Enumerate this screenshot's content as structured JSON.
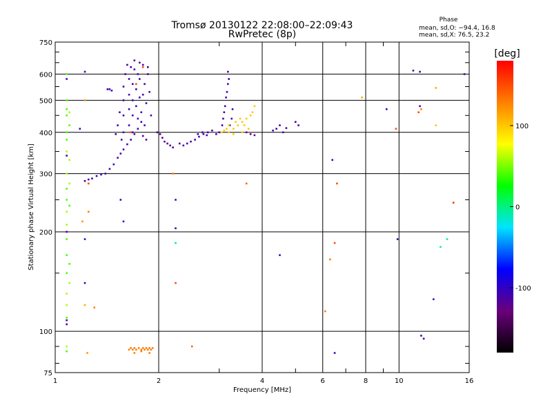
{
  "chart_data": {
    "type": "scatter",
    "title": "Tromsø 20130122 22:08:00–22:09:43",
    "subtitle": "RwPretec (8p)",
    "xlabel": "Frequency [MHz]",
    "ylabel": "Stationary phase Virtual Height [km]",
    "xscale": "log",
    "yscale": "log",
    "xlim": [
      1,
      16
    ],
    "ylim": [
      75,
      750
    ],
    "x_ticks": [
      1,
      2,
      4,
      6,
      8,
      10,
      16
    ],
    "y_ticks": [
      75,
      100,
      200,
      300,
      400,
      500,
      600,
      750
    ],
    "grid": true,
    "stats": {
      "heading": "Phase",
      "o_line": "mean, sd,O: −94.4, 16.8",
      "x_line": "mean, sd,X:  76.5, 23.2"
    },
    "colorbar": {
      "label": "[deg]",
      "range": [
        -180,
        180
      ],
      "ticks": [
        100,
        0,
        -100
      ],
      "colors": [
        "#000000",
        "#6a007a",
        "#0000ff",
        "#00e4ff",
        "#00ff00",
        "#ffff00",
        "#ff8000",
        "#ff0000"
      ]
    },
    "series": [
      {
        "points": [
          [
            1.22,
            285,
            -110
          ],
          [
            1.25,
            288,
            -110
          ],
          [
            1.28,
            290,
            -110
          ],
          [
            1.32,
            295,
            -110
          ],
          [
            1.36,
            298,
            -110
          ],
          [
            1.4,
            300,
            -110
          ],
          [
            1.44,
            310,
            -110
          ],
          [
            1.48,
            320,
            -110
          ],
          [
            1.52,
            335,
            -110
          ],
          [
            1.55,
            345,
            -110
          ],
          [
            1.58,
            355,
            -110
          ],
          [
            1.62,
            368,
            -110
          ],
          [
            1.66,
            380,
            -110
          ],
          [
            1.7,
            395,
            -110
          ],
          [
            1.74,
            410,
            -110
          ],
          [
            1.78,
            430,
            -110
          ],
          [
            1.58,
            400,
            -110
          ],
          [
            1.58,
            450,
            -110
          ],
          [
            1.58,
            500,
            -110
          ],
          [
            1.58,
            550,
            -110
          ],
          [
            1.6,
            600,
            -110
          ],
          [
            1.62,
            640,
            -110
          ],
          [
            1.64,
            420,
            -110
          ],
          [
            1.64,
            470,
            -110
          ],
          [
            1.64,
            520,
            -110
          ],
          [
            1.64,
            580,
            -110
          ],
          [
            1.66,
            630,
            -110
          ],
          [
            1.68,
            400,
            -110
          ],
          [
            1.68,
            450,
            -110
          ],
          [
            1.68,
            500,
            -110
          ],
          [
            1.68,
            560,
            -110
          ],
          [
            1.7,
            620,
            -110
          ],
          [
            1.72,
            480,
            -110
          ],
          [
            1.72,
            540,
            -110
          ],
          [
            1.74,
            440,
            -110
          ],
          [
            1.74,
            600,
            -110
          ],
          [
            1.76,
            510,
            -110
          ],
          [
            1.76,
            580,
            -110
          ],
          [
            1.78,
            460,
            -110
          ],
          [
            1.8,
            390,
            -110
          ],
          [
            1.8,
            520,
            -110
          ],
          [
            1.8,
            640,
            -110
          ],
          [
            1.82,
            420,
            -110
          ],
          [
            1.82,
            560,
            -110
          ],
          [
            1.84,
            380,
            -110
          ],
          [
            1.84,
            490,
            -110
          ],
          [
            1.86,
            600,
            -110
          ],
          [
            1.88,
            530,
            -110
          ],
          [
            1.9,
            450,
            -110
          ],
          [
            1.5,
            395,
            -110
          ],
          [
            1.52,
            420,
            -110
          ],
          [
            1.54,
            460,
            -110
          ],
          [
            1.56,
            380,
            -110
          ],
          [
            1.42,
            540,
            -110
          ],
          [
            1.44,
            540,
            -110
          ],
          [
            1.46,
            535,
            -110
          ],
          [
            1.7,
            660,
            -110
          ],
          [
            1.76,
            650,
            -110
          ],
          [
            1.86,
            630,
            -110
          ],
          [
            1.98,
            400,
            -120
          ],
          [
            2.02,
            395,
            -120
          ],
          [
            2.05,
            385,
            -120
          ],
          [
            2.08,
            375,
            -120
          ],
          [
            2.12,
            370,
            -120
          ],
          [
            2.16,
            365,
            -120
          ],
          [
            2.2,
            360,
            -120
          ],
          [
            2.3,
            370,
            -110
          ],
          [
            2.36,
            365,
            -110
          ],
          [
            2.42,
            370,
            -110
          ],
          [
            2.48,
            375,
            -110
          ],
          [
            2.55,
            380,
            -110
          ],
          [
            2.62,
            388,
            -110
          ],
          [
            2.7,
            395,
            -110
          ],
          [
            2.78,
            400,
            -110
          ],
          [
            2.86,
            405,
            -110
          ],
          [
            2.94,
            395,
            -110
          ],
          [
            3.0,
            400,
            -110
          ],
          [
            2.6,
            395,
            -110
          ],
          [
            2.68,
            400,
            -110
          ],
          [
            2.76,
            392,
            -110
          ],
          [
            3.06,
            420,
            -110
          ],
          [
            3.08,
            440,
            -110
          ],
          [
            3.1,
            460,
            -110
          ],
          [
            3.12,
            480,
            -110
          ],
          [
            3.14,
            510,
            -110
          ],
          [
            3.16,
            530,
            -110
          ],
          [
            3.18,
            560,
            -110
          ],
          [
            3.2,
            580,
            -110
          ],
          [
            3.22,
            420,
            -110
          ],
          [
            3.26,
            440,
            -110
          ],
          [
            3.28,
            470,
            -110
          ],
          [
            3.6,
            400,
            -120
          ],
          [
            3.7,
            395,
            -120
          ],
          [
            3.8,
            392,
            -120
          ],
          [
            4.3,
            405,
            -110
          ],
          [
            4.4,
            410,
            -110
          ],
          [
            4.5,
            420,
            -110
          ],
          [
            4.6,
            400,
            -110
          ],
          [
            4.7,
            412,
            -110
          ],
          [
            5.0,
            430,
            -110
          ],
          [
            5.1,
            420,
            -110
          ]
        ]
      },
      {
        "points": [
          [
            3.05,
            400,
            100
          ],
          [
            3.1,
            405,
            100
          ],
          [
            3.15,
            410,
            100
          ],
          [
            3.2,
            400,
            100
          ],
          [
            3.3,
            410,
            100
          ],
          [
            3.4,
            420,
            100
          ],
          [
            3.5,
            430,
            100
          ],
          [
            3.6,
            440,
            100
          ],
          [
            3.7,
            450,
            100
          ],
          [
            3.75,
            460,
            100
          ],
          [
            3.8,
            480,
            100
          ],
          [
            3.2,
            420,
            100
          ],
          [
            3.35,
            430,
            100
          ],
          [
            3.45,
            440,
            100
          ],
          [
            3.55,
            420,
            100
          ],
          [
            3.65,
            410,
            100
          ],
          [
            3.5,
            400,
            100
          ],
          [
            3.3,
            395,
            100
          ],
          [
            1.64,
            88,
            130
          ],
          [
            1.66,
            89,
            130
          ],
          [
            1.68,
            88,
            130
          ],
          [
            1.7,
            89,
            130
          ],
          [
            1.72,
            88,
            130
          ],
          [
            1.75,
            89,
            130
          ],
          [
            1.78,
            88,
            130
          ],
          [
            1.8,
            89,
            130
          ],
          [
            1.82,
            88,
            130
          ],
          [
            1.84,
            89,
            130
          ],
          [
            1.86,
            88,
            130
          ],
          [
            1.88,
            89,
            130
          ],
          [
            1.9,
            88,
            130
          ],
          [
            1.92,
            89,
            130
          ],
          [
            1.7,
            86,
            130
          ],
          [
            1.78,
            87,
            130
          ],
          [
            1.88,
            86,
            130
          ]
        ]
      },
      {
        "points": [
          [
            1.08,
            600,
            40
          ],
          [
            1.08,
            500,
            40
          ],
          [
            1.08,
            470,
            40
          ],
          [
            1.08,
            450,
            40
          ],
          [
            1.08,
            400,
            40
          ],
          [
            1.08,
            380,
            40
          ],
          [
            1.08,
            350,
            60
          ],
          [
            1.08,
            300,
            60
          ],
          [
            1.08,
            270,
            40
          ],
          [
            1.08,
            250,
            40
          ],
          [
            1.08,
            230,
            60
          ],
          [
            1.08,
            210,
            60
          ],
          [
            1.08,
            190,
            40
          ],
          [
            1.08,
            170,
            40
          ],
          [
            1.08,
            150,
            40
          ],
          [
            1.08,
            130,
            60
          ],
          [
            1.08,
            120,
            60
          ],
          [
            1.08,
            110,
            40
          ],
          [
            1.08,
            90,
            60
          ],
          [
            1.08,
            87,
            40
          ],
          [
            1.1,
            460,
            60
          ],
          [
            1.1,
            420,
            40
          ],
          [
            1.1,
            330,
            60
          ],
          [
            1.1,
            280,
            60
          ],
          [
            1.1,
            240,
            40
          ],
          [
            1.1,
            160,
            40
          ],
          [
            1.1,
            140,
            60
          ]
        ]
      },
      {
        "points": [
          [
            1.08,
            580,
            -110
          ],
          [
            1.08,
            340,
            -110
          ],
          [
            1.08,
            200,
            -110
          ],
          [
            1.08,
            108,
            -110
          ],
          [
            1.08,
            105,
            -110
          ],
          [
            1.22,
            610,
            -110
          ],
          [
            1.22,
            190,
            -110
          ],
          [
            1.22,
            140,
            -110
          ],
          [
            1.18,
            410,
            -110
          ],
          [
            1.55,
            250,
            -110
          ],
          [
            1.58,
            215,
            -110
          ],
          [
            2.24,
            250,
            -110
          ],
          [
            2.24,
            205,
            -110
          ],
          [
            2.24,
            185,
            -10
          ],
          [
            3.18,
            610,
            -110
          ],
          [
            4.5,
            170,
            -110
          ],
          [
            6.4,
            330,
            -110
          ],
          [
            6.5,
            86,
            -110
          ],
          [
            9.2,
            470,
            -110
          ],
          [
            9.9,
            190,
            -110
          ],
          [
            11.0,
            615,
            -110
          ],
          [
            11.5,
            610,
            -110
          ],
          [
            11.5,
            480,
            -110
          ],
          [
            11.6,
            97,
            -110
          ],
          [
            11.8,
            95,
            -110
          ],
          [
            12.6,
            125,
            -110
          ],
          [
            13.2,
            180,
            -10
          ],
          [
            13.8,
            190,
            -10
          ],
          [
            15.5,
            600,
            -110
          ]
        ]
      },
      {
        "points": [
          [
            1.25,
            280,
            150
          ],
          [
            1.25,
            230,
            130
          ],
          [
            1.22,
            500,
            120
          ],
          [
            1.22,
            120,
            110
          ],
          [
            1.3,
            118,
            130
          ],
          [
            1.2,
            215,
            120
          ],
          [
            1.24,
            86,
            120
          ],
          [
            2.2,
            300,
            130
          ],
          [
            2.24,
            140,
            150
          ],
          [
            2.5,
            90,
            140
          ],
          [
            3.6,
            280,
            140
          ],
          [
            6.1,
            115,
            130
          ],
          [
            6.3,
            165,
            130
          ],
          [
            6.5,
            185,
            150
          ],
          [
            6.6,
            280,
            150
          ],
          [
            7.8,
            510,
            110
          ],
          [
            9.8,
            410,
            150
          ],
          [
            11.4,
            460,
            150
          ],
          [
            11.6,
            470,
            130
          ],
          [
            12.8,
            420,
            100
          ],
          [
            12.8,
            545,
            110
          ],
          [
            14.4,
            245,
            160
          ],
          [
            1.8,
            630,
            150
          ],
          [
            1.66,
            400,
            150
          ],
          [
            1.72,
            560,
            150
          ]
        ]
      }
    ]
  }
}
